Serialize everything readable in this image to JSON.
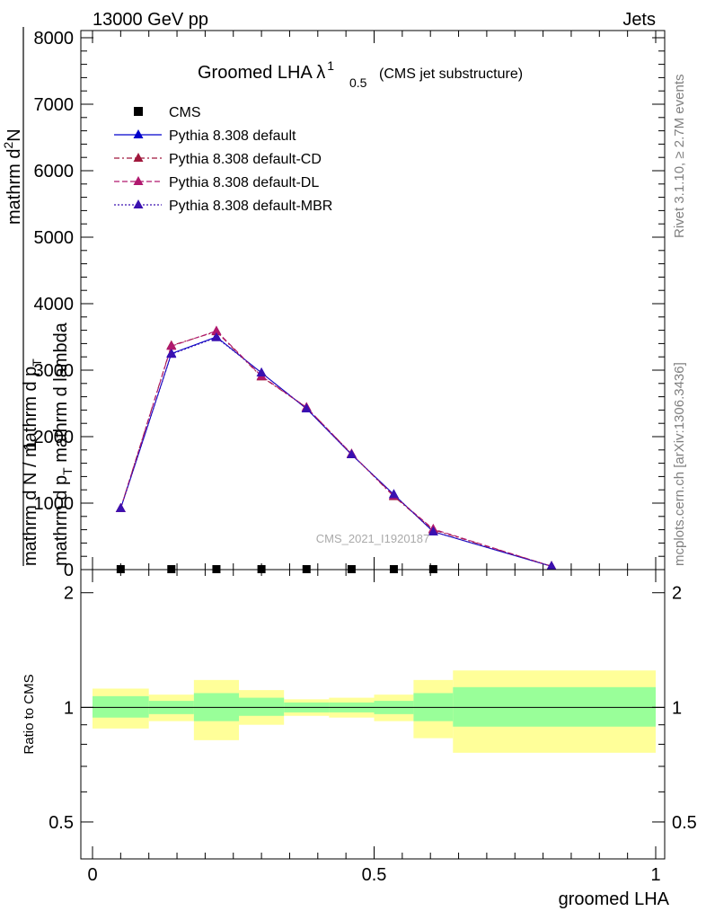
{
  "header": {
    "left": "13000 GeV pp",
    "right": "Jets"
  },
  "title": {
    "main": "Groomed LHA",
    "symbol": "λ",
    "sup": "1",
    "sub": "0.5",
    "note": "(CMS jet substructure)"
  },
  "side_labels": {
    "rivet": "Rivet 3.1.10, ≥ 2.7M events",
    "mcplots": "mcplots.cern.ch [arXiv:1306.3436]"
  },
  "watermark": "CMS_2021_I1920187",
  "chart_data": [
    {
      "type": "line",
      "panel": "main",
      "xlabel": "groomed LHA",
      "ylabel": "1 / mathrm d N / mathrm d p_T mathrm d^2N / mathrm d p_T mathrm d lambda",
      "ylabel_parts": {
        "one": "1",
        "denominator": "mathrm d N / mathrm d p",
        "denominator_sub": "T",
        "numerator_a": "mathrm d",
        "numerator_sup": "2",
        "numerator_b": "N",
        "tail_a": "mathrm d p",
        "tail_sub": "T",
        "tail_b": " mathrm d lambda"
      },
      "xlim": [
        0,
        1
      ],
      "ylim": [
        0,
        8000
      ],
      "y_ticks": [
        0,
        1000,
        2000,
        3000,
        4000,
        5000,
        6000,
        7000,
        8000
      ],
      "y_tick_labels": [
        "0",
        "1000",
        "2000",
        "3000",
        "4000",
        "5000",
        "6000",
        "7000",
        "8000"
      ],
      "x": [
        0.05,
        0.14,
        0.22,
        0.3,
        0.38,
        0.46,
        0.535,
        0.605,
        0.815
      ],
      "series": [
        {
          "name": "CMS",
          "marker": "square",
          "color": "#000000",
          "style": "none",
          "values": [
            0,
            0,
            0,
            0,
            0,
            0,
            0,
            0,
            null
          ]
        },
        {
          "name": "Pythia 8.308 default",
          "marker": "triangle",
          "color": "#0000cc",
          "style": "solid",
          "values": [
            920,
            3250,
            3500,
            2960,
            2420,
            1730,
            1130,
            570,
            50
          ]
        },
        {
          "name": "Pythia 8.308 default-CD",
          "marker": "triangle",
          "color": "#a0183c",
          "style": "dashdot",
          "values": [
            920,
            3370,
            3580,
            2900,
            2440,
            1740,
            1100,
            600,
            50
          ]
        },
        {
          "name": "Pythia 8.308 default-DL",
          "marker": "triangle",
          "color": "#b0186e",
          "style": "dashed",
          "values": [
            920,
            3360,
            3590,
            2910,
            2440,
            1740,
            1110,
            610,
            50
          ]
        },
        {
          "name": "Pythia 8.308 default-MBR",
          "marker": "triangle",
          "color": "#3a10b0",
          "style": "dotted",
          "values": [
            920,
            3240,
            3490,
            2960,
            2420,
            1730,
            1130,
            570,
            50
          ]
        }
      ],
      "legend_position": "top-left"
    },
    {
      "type": "area",
      "panel": "ratio",
      "ylabel": "Ratio to CMS",
      "xlabel": "groomed LHA",
      "xlim": [
        0,
        1
      ],
      "ylim": [
        0.4,
        2.3
      ],
      "y_ticks": [
        0.5,
        1,
        2
      ],
      "y_tick_labels": [
        "0.5",
        "1",
        "2"
      ],
      "x_ticks": [
        0,
        0.5,
        1
      ],
      "x_tick_labels": [
        "0",
        "0.5",
        "1"
      ],
      "bins": [
        {
          "lo": 0.0,
          "hi": 0.1,
          "inner": [
            0.94,
            1.07
          ],
          "outer": [
            0.88,
            1.12
          ]
        },
        {
          "lo": 0.1,
          "hi": 0.18,
          "inner": [
            0.96,
            1.04
          ],
          "outer": [
            0.92,
            1.08
          ]
        },
        {
          "lo": 0.18,
          "hi": 0.26,
          "inner": [
            0.92,
            1.09
          ],
          "outer": [
            0.82,
            1.18
          ]
        },
        {
          "lo": 0.26,
          "hi": 0.34,
          "inner": [
            0.95,
            1.06
          ],
          "outer": [
            0.9,
            1.11
          ]
        },
        {
          "lo": 0.34,
          "hi": 0.42,
          "inner": [
            0.97,
            1.03
          ],
          "outer": [
            0.95,
            1.05
          ]
        },
        {
          "lo": 0.42,
          "hi": 0.5,
          "inner": [
            0.97,
            1.03
          ],
          "outer": [
            0.94,
            1.06
          ]
        },
        {
          "lo": 0.5,
          "hi": 0.57,
          "inner": [
            0.96,
            1.04
          ],
          "outer": [
            0.92,
            1.08
          ]
        },
        {
          "lo": 0.57,
          "hi": 0.64,
          "inner": [
            0.92,
            1.09
          ],
          "outer": [
            0.83,
            1.18
          ]
        },
        {
          "lo": 0.64,
          "hi": 1.0,
          "inner": [
            0.89,
            1.13
          ],
          "outer": [
            0.76,
            1.25
          ]
        }
      ]
    }
  ]
}
